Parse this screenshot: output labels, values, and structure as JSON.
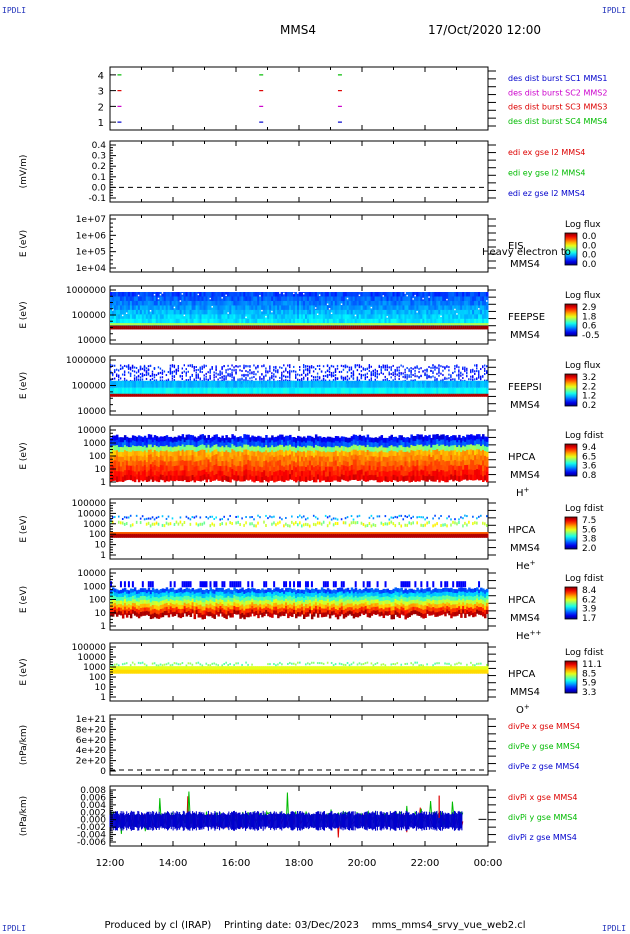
{
  "header": {
    "corner_label": "IPDLI",
    "spacecraft": "MMS4",
    "datetime": "17/Oct/2020 12:00"
  },
  "footer": {
    "produced_by": "Produced by cl (IRAP)",
    "printing_date": "Printing date: 03/Dec/2023",
    "filename": "mms_mms4_srvy_vue_web2.cl"
  },
  "x_axis": {
    "ticks": [
      "12:00",
      "14:00",
      "16:00",
      "18:00",
      "20:00",
      "22:00",
      "00:00"
    ]
  },
  "colors": {
    "red": "#dd0000",
    "green": "#00bb00",
    "blue": "#0000cc",
    "magenta": "#cc00cc"
  },
  "panels": [
    {
      "type": "burst",
      "ylim": [
        0.5,
        4.5
      ],
      "yticks": [
        "4",
        "3",
        "2",
        "1"
      ],
      "labels": [
        {
          "text": "des dist burst SC1 MMS1",
          "color": "#0000cc"
        },
        {
          "text": "des dist burst SC2 MMS2",
          "color": "#cc00cc"
        },
        {
          "text": "des dist burst SC3 MMS3",
          "color": "#dd0000"
        },
        {
          "text": "des dist burst SC4 MMS4",
          "color": "#00bb00"
        }
      ],
      "marks": [
        {
          "sc": 4,
          "times": [
            12.3,
            16.8,
            19.3
          ],
          "color": "#00bb00"
        },
        {
          "sc": 3,
          "times": [
            12.3,
            16.8,
            19.3
          ],
          "color": "#dd0000"
        },
        {
          "sc": 2,
          "times": [
            12.3,
            16.8,
            19.3
          ],
          "color": "#cc00cc"
        },
        {
          "sc": 1,
          "times": [
            12.3,
            16.8,
            19.3
          ],
          "color": "#0000cc"
        }
      ]
    },
    {
      "type": "line",
      "ylabel": "(mV/m)",
      "ylim": [
        -0.1,
        0.4
      ],
      "yticks": [
        "0.4",
        "0.3",
        "0.2",
        "0.1",
        "0.0",
        "-0.1"
      ],
      "labels": [
        {
          "text": "edi ex gse l2 MMS4",
          "color": "#dd0000"
        },
        {
          "text": "edi ey gse l2 MMS4",
          "color": "#00bb00"
        },
        {
          "text": "edi ez gse l2 MMS4",
          "color": "#0000cc"
        }
      ]
    },
    {
      "type": "spec",
      "ylabel": "E (eV)",
      "yticks": [
        "1e+07",
        "1e+06",
        "1e+05",
        "1e+04"
      ],
      "right_title": "EIS",
      "right_sub": "MMS4",
      "overlay": "Heavy electron to",
      "cb_title": "Log flux",
      "cb_ticks": [
        "0.0",
        "0.0",
        "0.0",
        "0.0"
      ]
    },
    {
      "type": "spec",
      "ylabel": "E (eV)",
      "yticks": [
        "1000000",
        "100000",
        "10000"
      ],
      "right_title": "FEEPSE",
      "right_sub": "MMS4",
      "cb_title": "Log flux",
      "cb_ticks": [
        "2.9",
        "1.8",
        "0.6",
        "-0.5"
      ]
    },
    {
      "type": "spec",
      "ylabel": "E (eV)",
      "yticks": [
        "1000000",
        "100000",
        "10000"
      ],
      "right_title": "FEEPSI",
      "right_sub": "MMS4",
      "cb_title": "Log flux",
      "cb_ticks": [
        "3.2",
        "2.2",
        "1.2",
        "0.2"
      ]
    },
    {
      "type": "spec",
      "ylabel": "E (eV)",
      "yticks": [
        "10000",
        "1000",
        "100",
        "10",
        "1"
      ],
      "right_title": "HPCA",
      "right_sub": "MMS4",
      "species": "H",
      "species_sup": "+",
      "cb_title": "Log fdist",
      "cb_ticks": [
        "9.4",
        "6.5",
        "3.6",
        "0.8"
      ]
    },
    {
      "type": "spec",
      "ylabel": "E (eV)",
      "yticks": [
        "100000",
        "10000",
        "1000",
        "100",
        "10",
        "1"
      ],
      "right_title": "HPCA",
      "right_sub": "MMS4",
      "species": "He",
      "species_sup": "+",
      "cb_title": "Log fdist",
      "cb_ticks": [
        "7.5",
        "5.6",
        "3.8",
        "2.0"
      ]
    },
    {
      "type": "spec",
      "ylabel": "E (eV)",
      "yticks": [
        "10000",
        "1000",
        "100",
        "10",
        "1"
      ],
      "right_title": "HPCA",
      "right_sub": "MMS4",
      "species": "He",
      "species_sup": "++",
      "cb_title": "Log fdist",
      "cb_ticks": [
        "8.4",
        "6.2",
        "3.9",
        "1.7"
      ]
    },
    {
      "type": "spec",
      "ylabel": "E (eV)",
      "yticks": [
        "100000",
        "10000",
        "1000",
        "100",
        "10",
        "1"
      ],
      "right_title": "HPCA",
      "right_sub": "MMS4",
      "species": "O",
      "species_sup": "+",
      "cb_title": "Log fdist",
      "cb_ticks": [
        "11.1",
        "8.5",
        "5.9",
        "3.3"
      ]
    },
    {
      "type": "line",
      "ylabel": "(nPa/km)",
      "ylim": [
        -5e+19,
        1.05e+21
      ],
      "yticks": [
        "1e+21",
        "8e+20",
        "6e+20",
        "4e+20",
        "2e+20",
        "0"
      ],
      "labels": [
        {
          "text": "divPe x gse MMS4",
          "color": "#dd0000"
        },
        {
          "text": "divPe y gse MMS4",
          "color": "#00bb00"
        },
        {
          "text": "divPe z gse MMS4",
          "color": "#0000cc"
        }
      ]
    },
    {
      "type": "noise",
      "ylabel": "(nPa/km)",
      "ylim": [
        -0.006,
        0.008
      ],
      "yticks": [
        "0.008",
        "0.006",
        "0.004",
        "0.002",
        "0.000",
        "-0.002",
        "-0.004",
        "-0.006"
      ],
      "labels": [
        {
          "text": "divPi x gse MMS4",
          "color": "#dd0000"
        },
        {
          "text": "divPi y gse MMS4",
          "color": "#00bb00"
        },
        {
          "text": "divPi z gse MMS4",
          "color": "#0000cc"
        }
      ]
    }
  ],
  "chart_data": {
    "type": "heatmap",
    "x_range_hours": [
      12,
      24
    ],
    "note_series": [
      {
        "name": "FEEPSE",
        "band_log_range": [
          4.35,
          5.9
        ]
      },
      {
        "name": "FEEPSI",
        "band_log_range": [
          4.65,
          5.5
        ]
      },
      {
        "name": "HPCA H+",
        "band_log_range": [
          0.1,
          4.3
        ]
      },
      {
        "name": "HPCA He+",
        "band_log_range": [
          1.9,
          3.9
        ]
      },
      {
        "name": "HPCA He++",
        "band_log_range": [
          1.2,
          3.7
        ]
      },
      {
        "name": "HPCA O+",
        "band_log_range": [
          2.1,
          3.0
        ]
      }
    ]
  }
}
